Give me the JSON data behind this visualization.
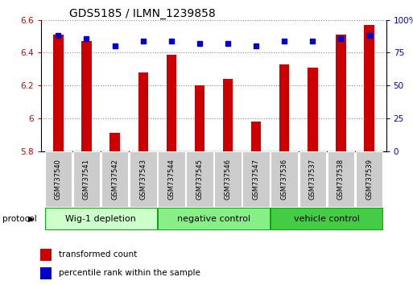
{
  "title": "GDS5185 / ILMN_1239858",
  "samples": [
    "GSM737540",
    "GSM737541",
    "GSM737542",
    "GSM737543",
    "GSM737544",
    "GSM737545",
    "GSM737546",
    "GSM737547",
    "GSM737536",
    "GSM737537",
    "GSM737538",
    "GSM737539"
  ],
  "transformed_counts": [
    6.51,
    6.47,
    5.91,
    6.28,
    6.39,
    6.2,
    6.24,
    5.98,
    6.33,
    6.31,
    6.51,
    6.57
  ],
  "percentile_ranks": [
    88,
    86,
    80,
    84,
    84,
    82,
    82,
    80,
    84,
    84,
    86,
    88
  ],
  "ylim_left": [
    5.8,
    6.6
  ],
  "ylim_right": [
    0,
    100
  ],
  "yticks_left": [
    5.8,
    6.0,
    6.2,
    6.4,
    6.6
  ],
  "yticks_right": [
    0,
    25,
    50,
    75,
    100
  ],
  "bar_color": "#cc0000",
  "dot_color": "#0000cc",
  "groups": [
    {
      "label": "Wig-1 depletion",
      "indices": [
        0,
        1,
        2,
        3
      ]
    },
    {
      "label": "negative control",
      "indices": [
        4,
        5,
        6,
        7
      ]
    },
    {
      "label": "vehicle control",
      "indices": [
        8,
        9,
        10,
        11
      ]
    }
  ],
  "group_colors": [
    "#ccffcc",
    "#88ee88",
    "#44cc44"
  ],
  "legend_bar_label": "transformed count",
  "legend_dot_label": "percentile rank within the sample",
  "bar_width": 0.35,
  "baseline": 5.8,
  "protocol_label": "protocol",
  "title_fontsize": 10,
  "tick_fontsize": 7.5,
  "legend_fontsize": 7.5,
  "sample_fontsize": 6.0,
  "group_fontsize": 8.0
}
